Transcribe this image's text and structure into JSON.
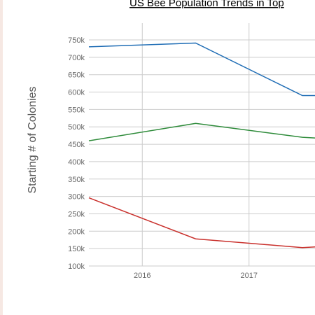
{
  "chart_data": {
    "type": "line",
    "title": "US Bee Population Trends in Top",
    "ylabel": "Starting # of Colonies",
    "xlabel": "",
    "ylim": [
      100000,
      780000
    ],
    "y_ticks": [
      100000,
      150000,
      200000,
      250000,
      300000,
      350000,
      400000,
      450000,
      500000,
      550000,
      600000,
      650000,
      700000,
      750000
    ],
    "y_tick_labels": [
      "100k",
      "150k",
      "200k",
      "250k",
      "300k",
      "350k",
      "400k",
      "450k",
      "500k",
      "550k",
      "600k",
      "650k",
      "700k",
      "750k"
    ],
    "xlim": [
      2015.5,
      2017.62
    ],
    "x_ticks": [
      2016,
      2017
    ],
    "x_tick_labels": [
      "2016",
      "2017"
    ],
    "grid": true,
    "x": [
      2015.5,
      2016.5,
      2017.5,
      2017.62
    ],
    "series": [
      {
        "color": "#1f6db5",
        "values": [
          730000,
          741000,
          590000,
          590000
        ]
      },
      {
        "color": "#2e8b3a",
        "values": [
          460000,
          510000,
          470000,
          468000
        ]
      },
      {
        "color": "#c9302c",
        "values": [
          296000,
          178000,
          153000,
          155000
        ]
      }
    ]
  }
}
